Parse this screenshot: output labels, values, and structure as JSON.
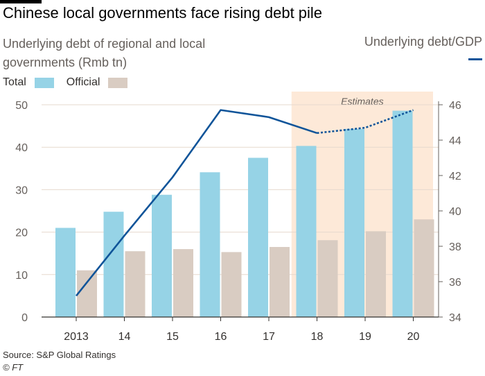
{
  "title": "Chinese local governments face rising debt pile",
  "subtitle": "Underlying debt of regional and local governments (Rmb tn)",
  "right_axis_label": "Underlying debt/GDP",
  "source": "Source: S&P Global Ratings",
  "copyright": "© FT",
  "colors": {
    "total": "#96d3e6",
    "official": "#d9ccc2",
    "line": "#0f5499",
    "estimate_band": "#fde9d8"
  },
  "chart_data": {
    "type": "bar",
    "categories": [
      "2013",
      "14",
      "15",
      "16",
      "17",
      "18",
      "19",
      "20"
    ],
    "series": [
      {
        "name": "Total",
        "values": [
          21.0,
          24.8,
          28.8,
          34.1,
          37.5,
          40.3,
          44.3,
          48.6
        ]
      },
      {
        "name": "Official",
        "values": [
          11.0,
          15.5,
          16.0,
          15.3,
          16.5,
          18.1,
          20.2,
          23.0
        ]
      }
    ],
    "line_series": {
      "name": "Underlying debt/GDP",
      "axis": "right",
      "values": [
        35.2,
        38.6,
        41.9,
        45.7,
        45.3,
        44.4,
        44.7,
        45.7
      ],
      "estimated_from_index": 5
    },
    "estimates_label": "Estimates",
    "estimates_from_index": 5,
    "ylim": [
      0,
      50
    ],
    "y_ticks": [
      0,
      10,
      20,
      30,
      40,
      50
    ],
    "y2lim": [
      34,
      46
    ],
    "y2_ticks": [
      34,
      36,
      38,
      40,
      42,
      44,
      46
    ],
    "grid": true,
    "legend": "top-left"
  }
}
